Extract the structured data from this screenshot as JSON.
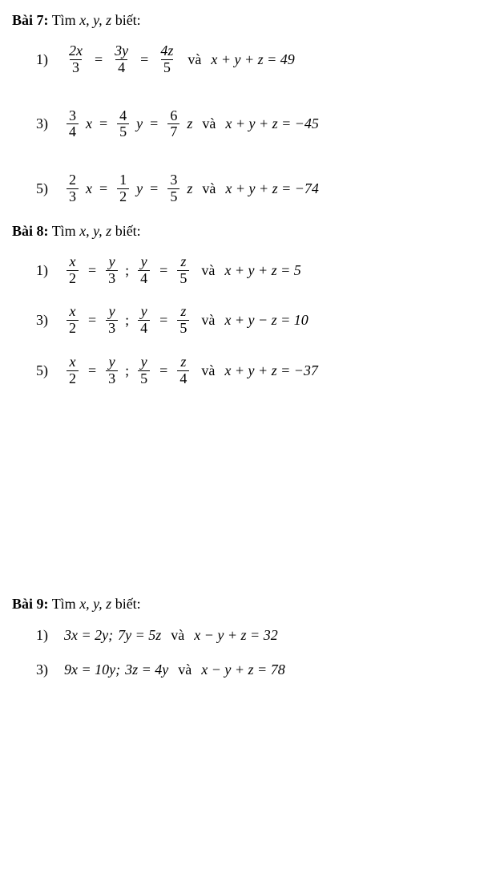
{
  "ex7": {
    "title_bold": "Bài 7:",
    "title_rest": " Tìm ",
    "title_vars": "x,  y,  z",
    "title_end": " biết:",
    "p1": {
      "num": "1)",
      "f1n": "2x",
      "f1d": "3",
      "f2n": "3y",
      "f2d": "4",
      "f3n": "4z",
      "f3d": "5",
      "va": "và",
      "eq2": "x + y + z = 49"
    },
    "p3": {
      "num": "3)",
      "f1n": "3",
      "f1d": "4",
      "f1v": "x",
      "f2n": "4",
      "f2d": "5",
      "f2v": "y",
      "f3n": "6",
      "f3d": "7",
      "f3v": "z",
      "va": "và",
      "eq2": "x + y + z = −45"
    },
    "p5": {
      "num": "5)",
      "f1n": "2",
      "f1d": "3",
      "f1v": "x",
      "f2n": "1",
      "f2d": "2",
      "f2v": "y",
      "f3n": "3",
      "f3d": "5",
      "f3v": "z",
      "va": "và",
      "eq2": "x + y + z = −74"
    }
  },
  "ex8": {
    "title_bold": "Bài 8:",
    "title_rest": " Tìm ",
    "title_vars": "x,  y,  z",
    "title_end": " biết:",
    "p1": {
      "num": "1)",
      "f1n": "x",
      "f1d": "2",
      "f2n": "y",
      "f2d": "3",
      "f3n": "y",
      "f3d": "4",
      "f4n": "z",
      "f4d": "5",
      "va": "và",
      "eq2": "x + y + z = 5"
    },
    "p3": {
      "num": "3)",
      "f1n": "x",
      "f1d": "2",
      "f2n": "y",
      "f2d": "3",
      "f3n": "y",
      "f3d": "4",
      "f4n": "z",
      "f4d": "5",
      "va": "và",
      "eq2": "x + y − z = 10"
    },
    "p5": {
      "num": "5)",
      "f1n": "x",
      "f1d": "2",
      "f2n": "y",
      "f2d": "3",
      "f3n": "y",
      "f3d": "5",
      "f4n": "z",
      "f4d": "4",
      "va": "và",
      "eq2": "x + y + z = −37"
    }
  },
  "ex9": {
    "title_bold": "Bài 9:",
    "title_rest": " Tìm ",
    "title_vars": "x,  y,  z",
    "title_end": " biết:",
    "p1": {
      "num": "1)",
      "eq1a": "3x = 2y;",
      "eq1b": "7y = 5z",
      "va": "và",
      "eq2": "x − y + z = 32"
    },
    "p3": {
      "num": "3)",
      "eq1a": "9x = 10y;",
      "eq1b": "3z = 4y",
      "va": "và",
      "eq2": "x − y + z = 78"
    }
  }
}
